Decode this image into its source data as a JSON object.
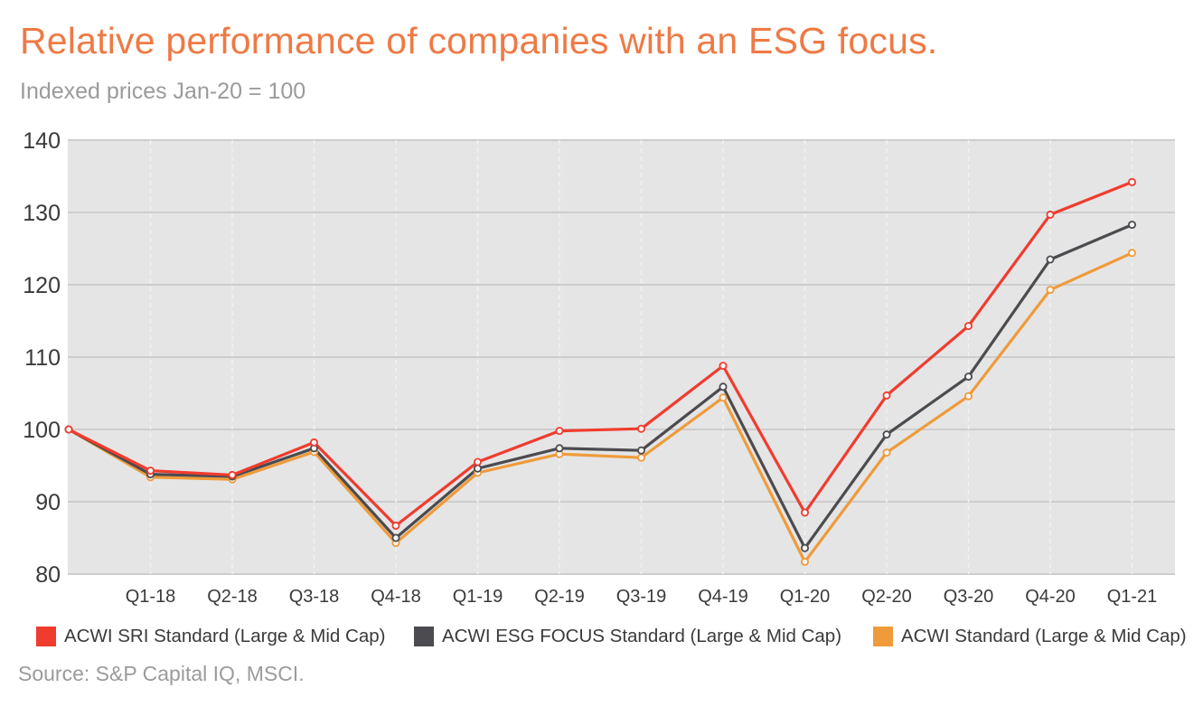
{
  "chart_data": {
    "type": "line",
    "title": "Relative performance of companies with an ESG focus.",
    "subtitle": "Indexed prices Jan-20 = 100",
    "source": "Source: S&P Capital IQ, MSCI.",
    "categories": [
      "",
      "Q1-18",
      "Q2-18",
      "Q3-18",
      "Q4-18",
      "Q1-19",
      "Q2-19",
      "Q3-19",
      "Q4-19",
      "Q1-20",
      "Q2-20",
      "Q3-20",
      "Q4-20",
      "Q1-21"
    ],
    "ylim": [
      80,
      140
    ],
    "yticks": [
      80,
      90,
      100,
      110,
      120,
      130,
      140
    ],
    "grid": true,
    "legend_position": "bottom",
    "series": [
      {
        "name": "ACWI SRI Standard (Large & Mid Cap)",
        "color": "#f03c2e",
        "values": [
          100,
          94.3,
          93.7,
          98.2,
          86.7,
          95.5,
          99.8,
          100.1,
          108.8,
          88.5,
          104.7,
          114.3,
          129.7,
          134.2
        ]
      },
      {
        "name": "ACWI ESG FOCUS Standard (Large & Mid Cap)",
        "color": "#4b4b50",
        "values": [
          100,
          93.8,
          93.5,
          97.4,
          85.0,
          94.6,
          97.4,
          97.1,
          105.9,
          83.6,
          99.3,
          107.3,
          123.5,
          128.3
        ]
      },
      {
        "name": "ACWI Standard (Large & Mid Cap)",
        "color": "#ef9b3a",
        "values": [
          100,
          93.4,
          93.1,
          96.9,
          84.3,
          94.0,
          96.6,
          96.1,
          104.4,
          81.7,
          96.8,
          104.6,
          119.3,
          124.4
        ]
      }
    ]
  }
}
